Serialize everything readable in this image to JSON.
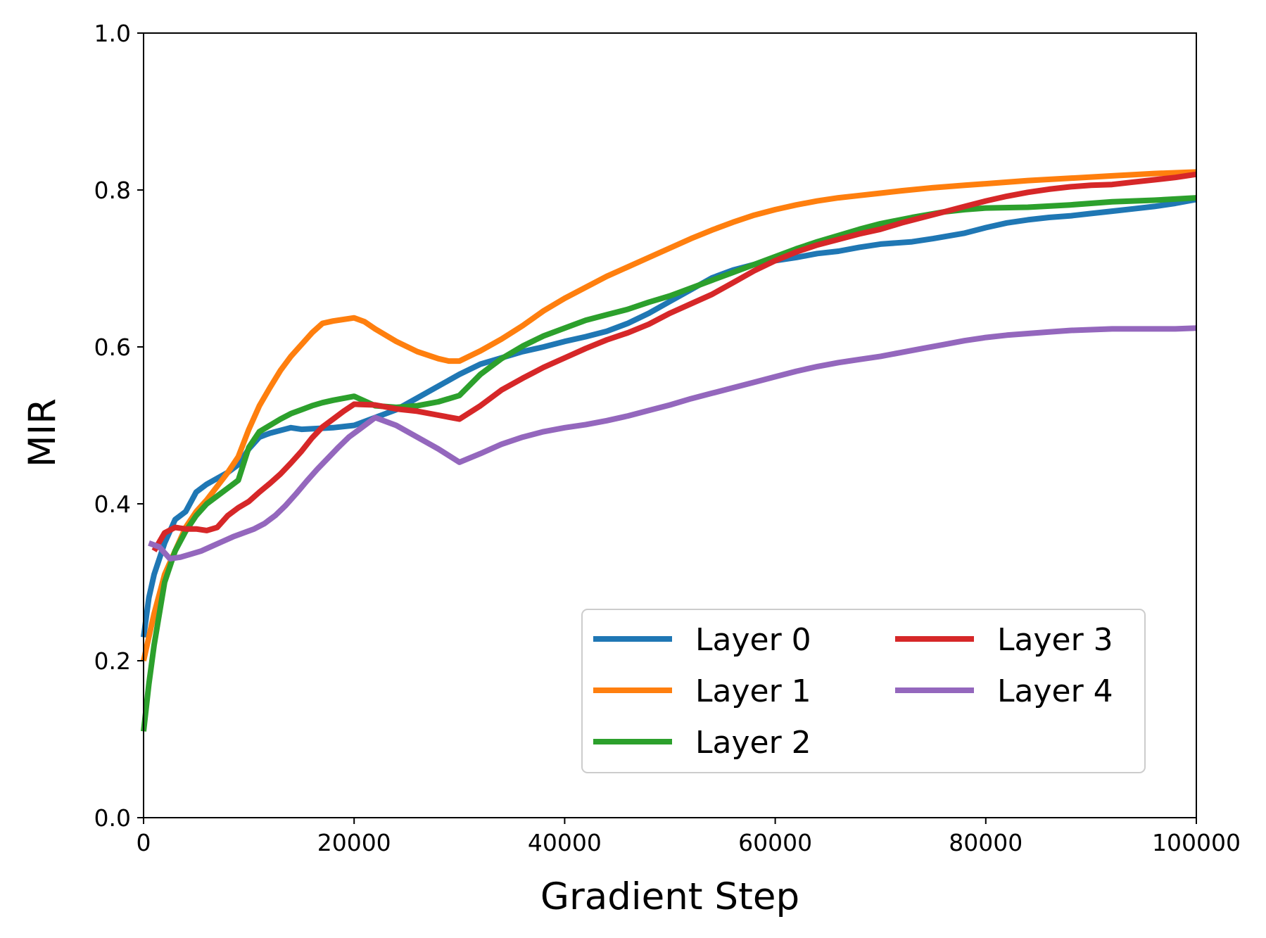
{
  "chart_data": {
    "type": "line",
    "xlabel": "Gradient Step",
    "ylabel": "MIR",
    "xlim": [
      0,
      100000
    ],
    "ylim": [
      0.0,
      1.0
    ],
    "xticks": [
      0,
      20000,
      40000,
      60000,
      80000,
      100000
    ],
    "xtick_labels": [
      "0",
      "20000",
      "40000",
      "60000",
      "80000",
      "100000"
    ],
    "yticks": [
      0.0,
      0.2,
      0.4,
      0.6,
      0.8,
      1.0
    ],
    "ytick_labels": [
      "0.0",
      "0.2",
      "0.4",
      "0.6",
      "0.8",
      "1.0"
    ],
    "grid": false,
    "legend": {
      "placement": "lower-right",
      "columns": 2
    },
    "series": [
      {
        "name": "Layer 0",
        "color": "#1f77b4",
        "x": [
          0,
          500,
          1000,
          2000,
          3000,
          4000,
          5000,
          6000,
          8000,
          9000,
          10000,
          11000,
          12000,
          14000,
          15000,
          18000,
          20000,
          22000,
          24000,
          26000,
          28000,
          30000,
          32000,
          34000,
          36000,
          38000,
          40000,
          42000,
          44000,
          46000,
          48000,
          50000,
          52000,
          54000,
          56000,
          58000,
          60000,
          62000,
          64000,
          66000,
          68000,
          70000,
          73000,
          75000,
          78000,
          80000,
          82000,
          84000,
          86000,
          88000,
          90000,
          92000,
          94000,
          96000,
          98000,
          100000
        ],
        "y": [
          0.23,
          0.28,
          0.31,
          0.35,
          0.38,
          0.39,
          0.415,
          0.425,
          0.44,
          0.45,
          0.47,
          0.485,
          0.49,
          0.497,
          0.495,
          0.497,
          0.5,
          0.51,
          0.52,
          0.535,
          0.55,
          0.565,
          0.578,
          0.586,
          0.594,
          0.6,
          0.607,
          0.613,
          0.62,
          0.63,
          0.643,
          0.658,
          0.673,
          0.688,
          0.698,
          0.705,
          0.71,
          0.714,
          0.719,
          0.722,
          0.727,
          0.731,
          0.734,
          0.738,
          0.745,
          0.752,
          0.758,
          0.762,
          0.765,
          0.767,
          0.77,
          0.773,
          0.776,
          0.779,
          0.783,
          0.788
        ]
      },
      {
        "name": "Layer 1",
        "color": "#ff7f0e",
        "x": [
          0,
          1000,
          2000,
          3000,
          4000,
          5000,
          6000,
          8000,
          9000,
          10000,
          11000,
          12000,
          13000,
          14000,
          15000,
          16000,
          17000,
          18000,
          20000,
          21000,
          22000,
          24000,
          26000,
          28000,
          29000,
          30000,
          32000,
          34000,
          36000,
          38000,
          40000,
          42000,
          44000,
          46000,
          48000,
          50000,
          52000,
          54000,
          56000,
          58000,
          60000,
          62000,
          64000,
          66000,
          68000,
          70000,
          72000,
          75000,
          78000,
          80000,
          84000,
          88000,
          92000,
          96000,
          100000
        ],
        "y": [
          0.2,
          0.26,
          0.31,
          0.34,
          0.37,
          0.39,
          0.405,
          0.44,
          0.46,
          0.495,
          0.525,
          0.548,
          0.57,
          0.588,
          0.603,
          0.618,
          0.63,
          0.633,
          0.637,
          0.632,
          0.623,
          0.607,
          0.594,
          0.585,
          0.582,
          0.582,
          0.595,
          0.61,
          0.627,
          0.646,
          0.662,
          0.676,
          0.69,
          0.702,
          0.714,
          0.726,
          0.738,
          0.749,
          0.759,
          0.768,
          0.775,
          0.781,
          0.786,
          0.79,
          0.793,
          0.796,
          0.799,
          0.803,
          0.806,
          0.808,
          0.812,
          0.815,
          0.818,
          0.821,
          0.823
        ]
      },
      {
        "name": "Layer 2",
        "color": "#2ca02c",
        "x": [
          0,
          500,
          1000,
          2000,
          3000,
          4000,
          5000,
          6000,
          8000,
          9000,
          10000,
          11000,
          13000,
          14000,
          15000,
          16000,
          17000,
          18000,
          20000,
          22000,
          24000,
          26000,
          28000,
          30000,
          32000,
          34000,
          36000,
          38000,
          40000,
          42000,
          44000,
          46000,
          48000,
          50000,
          52000,
          54000,
          56000,
          58000,
          60000,
          62000,
          64000,
          66000,
          68000,
          70000,
          73000,
          76000,
          78000,
          80000,
          84000,
          88000,
          92000,
          96000,
          100000
        ],
        "y": [
          0.11,
          0.17,
          0.22,
          0.3,
          0.34,
          0.365,
          0.385,
          0.4,
          0.42,
          0.43,
          0.472,
          0.492,
          0.508,
          0.515,
          0.52,
          0.525,
          0.529,
          0.532,
          0.537,
          0.525,
          0.523,
          0.525,
          0.53,
          0.538,
          0.565,
          0.585,
          0.601,
          0.614,
          0.624,
          0.634,
          0.641,
          0.648,
          0.657,
          0.665,
          0.675,
          0.685,
          0.695,
          0.705,
          0.715,
          0.725,
          0.734,
          0.742,
          0.75,
          0.757,
          0.765,
          0.772,
          0.775,
          0.777,
          0.778,
          0.781,
          0.785,
          0.787,
          0.79
        ]
      },
      {
        "name": "Layer 3",
        "color": "#d62728",
        "x": [
          1000,
          2000,
          3000,
          4000,
          5000,
          6000,
          7000,
          8000,
          9000,
          10000,
          11000,
          12000,
          13000,
          14000,
          15000,
          16000,
          17000,
          18000,
          19000,
          20000,
          22000,
          24000,
          26000,
          28000,
          30000,
          32000,
          34000,
          36000,
          38000,
          40000,
          42000,
          44000,
          46000,
          48000,
          50000,
          52000,
          54000,
          56000,
          58000,
          60000,
          62000,
          64000,
          66000,
          68000,
          70000,
          72000,
          74000,
          76000,
          78000,
          80000,
          82000,
          84000,
          86000,
          88000,
          90000,
          92000,
          94000,
          96000,
          98000,
          100000
        ],
        "y": [
          0.34,
          0.363,
          0.37,
          0.368,
          0.368,
          0.366,
          0.37,
          0.385,
          0.395,
          0.403,
          0.415,
          0.426,
          0.438,
          0.452,
          0.467,
          0.484,
          0.498,
          0.508,
          0.518,
          0.527,
          0.526,
          0.521,
          0.518,
          0.513,
          0.508,
          0.525,
          0.545,
          0.56,
          0.574,
          0.586,
          0.598,
          0.609,
          0.618,
          0.629,
          0.643,
          0.655,
          0.667,
          0.682,
          0.697,
          0.71,
          0.721,
          0.73,
          0.737,
          0.744,
          0.75,
          0.758,
          0.765,
          0.772,
          0.779,
          0.786,
          0.792,
          0.797,
          0.801,
          0.804,
          0.806,
          0.807,
          0.81,
          0.813,
          0.816,
          0.82
        ]
      },
      {
        "name": "Layer 4",
        "color": "#9467bd",
        "x": [
          500,
          1500,
          2500,
          3500,
          4500,
          5500,
          6500,
          7500,
          8500,
          9500,
          10500,
          11500,
          12500,
          13500,
          14500,
          15500,
          16500,
          17500,
          18500,
          19500,
          20500,
          22000,
          24000,
          26000,
          28000,
          30000,
          32000,
          34000,
          36000,
          38000,
          40000,
          42000,
          44000,
          46000,
          48000,
          50000,
          52000,
          54000,
          56000,
          58000,
          60000,
          62000,
          64000,
          66000,
          68000,
          70000,
          72000,
          74000,
          76000,
          78000,
          80000,
          82000,
          84000,
          86000,
          88000,
          90000,
          92000,
          94000,
          96000,
          98000,
          100000
        ],
        "y": [
          0.35,
          0.345,
          0.33,
          0.332,
          0.336,
          0.34,
          0.346,
          0.352,
          0.358,
          0.363,
          0.368,
          0.375,
          0.385,
          0.398,
          0.413,
          0.429,
          0.444,
          0.458,
          0.472,
          0.485,
          0.495,
          0.51,
          0.5,
          0.485,
          0.47,
          0.453,
          0.464,
          0.476,
          0.485,
          0.492,
          0.497,
          0.501,
          0.506,
          0.512,
          0.519,
          0.526,
          0.534,
          0.541,
          0.548,
          0.555,
          0.562,
          0.569,
          0.575,
          0.58,
          0.584,
          0.588,
          0.593,
          0.598,
          0.603,
          0.608,
          0.612,
          0.615,
          0.617,
          0.619,
          0.621,
          0.622,
          0.623,
          0.623,
          0.623,
          0.623,
          0.624
        ]
      }
    ]
  }
}
